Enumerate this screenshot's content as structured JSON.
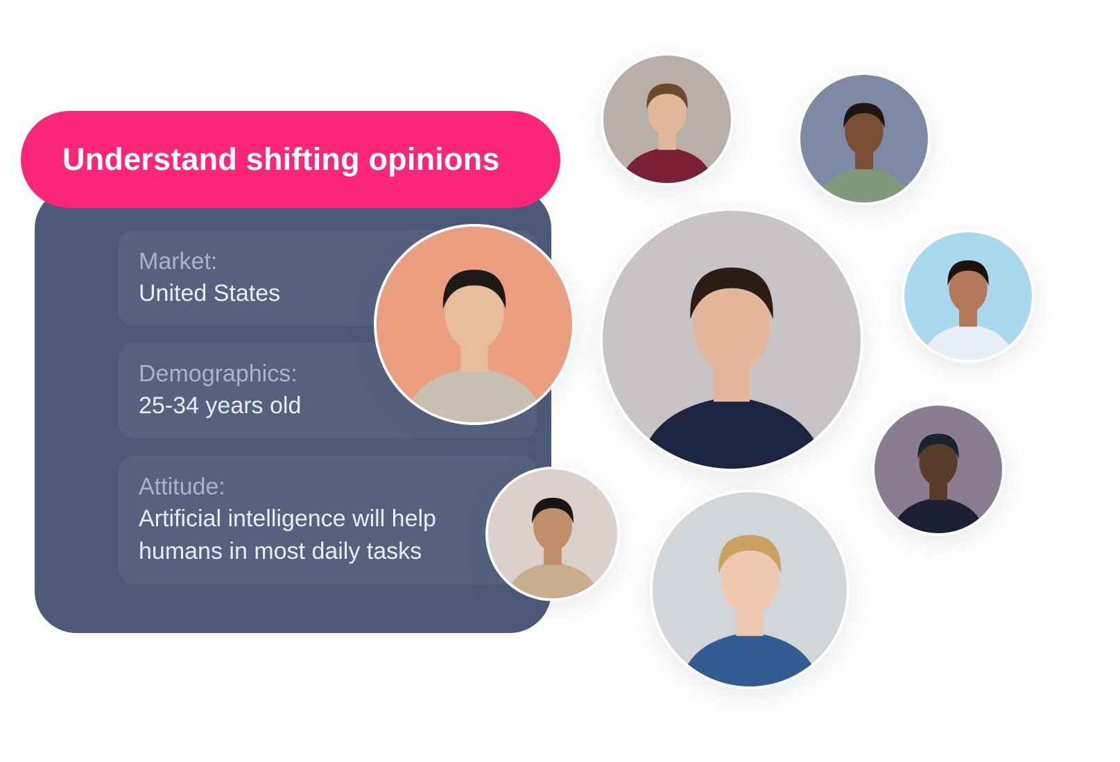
{
  "headline": "Understand shifting opinions",
  "fields": [
    {
      "label": "Market:",
      "value": "United States"
    },
    {
      "label": "Demographics:",
      "value": "25-34 years old"
    },
    {
      "label": "Attitude:",
      "value_line1": "Artificial intelligence will help",
      "value_line2": "humans in most daily tasks"
    }
  ],
  "colors": {
    "accent": "#fb2579",
    "card": "#4c5978",
    "field": "#55627f"
  },
  "icons": {
    "attitude_dropdown": "chevron-down-icon"
  },
  "avatars": [
    {
      "name": "person-curly-hair-mustache",
      "bg": "#b9aea8",
      "shirt": "#7a1f35",
      "skin": "#e2b89c",
      "hair": "#6a4a2a"
    },
    {
      "name": "person-smiling-green-shirt",
      "bg": "#7d8aa6",
      "shirt": "#7e9a7a",
      "skin": "#7a4e34",
      "hair": "#1e1410"
    },
    {
      "name": "person-smiling-beard-navy",
      "bg": "#c8c3c5",
      "shirt": "#1b2540",
      "skin": "#e5b79a",
      "hair": "#2b1d14"
    },
    {
      "name": "person-laughing-blue-bg",
      "bg": "#a9d9ef",
      "shirt": "#e8eef5",
      "skin": "#b27a58",
      "hair": "#1b120c"
    },
    {
      "name": "person-cap-glasses",
      "bg": "#8a7d8f",
      "shirt": "#1b2035",
      "skin": "#5a3a28",
      "hair": "#1c2230"
    },
    {
      "name": "person-blond-denim",
      "bg": "#d3d6d9",
      "shirt": "#345c94",
      "skin": "#efc8b0",
      "hair": "#c9a060"
    },
    {
      "name": "person-buzzcut-peach-bg",
      "bg": "#ec9e80",
      "shirt": "#c9bfb2",
      "skin": "#e8bd9d",
      "hair": "#1d1a18"
    },
    {
      "name": "person-curly-dark-hair",
      "bg": "#dcd0cd",
      "shirt": "#c9ad8e",
      "skin": "#c08e6a",
      "hair": "#1a1412"
    }
  ]
}
